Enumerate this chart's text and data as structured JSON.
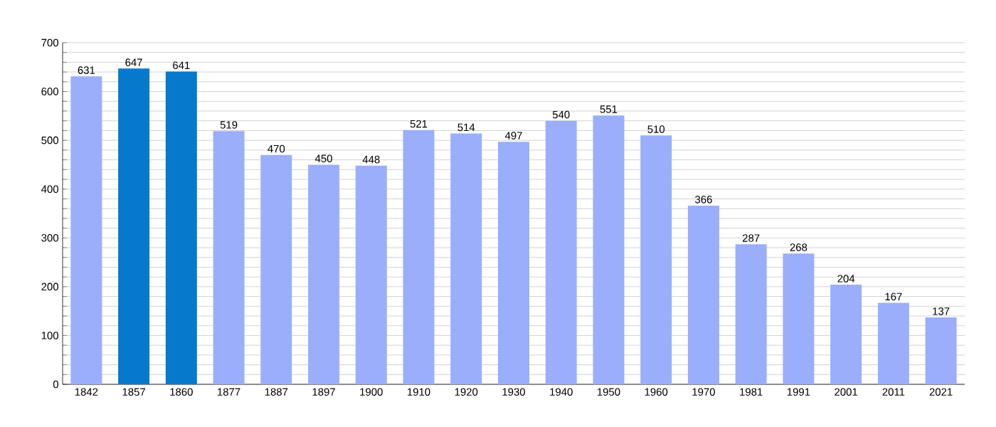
{
  "chart_data": {
    "type": "bar",
    "categories": [
      "1842",
      "1857",
      "1860",
      "1877",
      "1887",
      "1897",
      "1900",
      "1910",
      "1920",
      "1930",
      "1940",
      "1950",
      "1960",
      "1970",
      "1981",
      "1991",
      "2001",
      "2011",
      "2021"
    ],
    "values": [
      631,
      647,
      641,
      519,
      470,
      450,
      448,
      521,
      514,
      497,
      540,
      551,
      510,
      366,
      287,
      268,
      204,
      167,
      137
    ],
    "colors": [
      "#9aaefc",
      "#0779cc",
      "#0779cc",
      "#9aaefc",
      "#9aaefc",
      "#9aaefc",
      "#9aaefc",
      "#9aaefc",
      "#9aaefc",
      "#9aaefc",
      "#9aaefc",
      "#9aaefc",
      "#9aaefc",
      "#9aaefc",
      "#9aaefc",
      "#9aaefc",
      "#9aaefc",
      "#9aaefc",
      "#9aaefc"
    ],
    "ylim": [
      0,
      700
    ],
    "yticks": [
      0,
      {
        "value": 20,
        "label": null
      },
      {
        "value": 40,
        "label": null
      },
      {
        "value": 60,
        "label": null
      },
      {
        "value": 80,
        "label": null
      },
      100,
      {
        "value": 120,
        "label": null
      },
      {
        "value": 140,
        "label": null
      },
      {
        "value": 160,
        "label": null
      },
      {
        "value": 180,
        "label": null
      },
      200,
      {
        "value": 220,
        "label": null
      },
      {
        "value": 240,
        "label": null
      },
      {
        "value": 260,
        "label": null
      },
      {
        "value": 280,
        "label": null
      },
      300,
      {
        "value": 320,
        "label": null
      },
      {
        "value": 340,
        "label": null
      },
      {
        "value": 360,
        "label": null
      },
      {
        "value": 380,
        "label": null
      },
      400,
      {
        "value": 420,
        "label": null
      },
      {
        "value": 440,
        "label": null
      },
      {
        "value": 460,
        "label": null
      },
      {
        "value": 480,
        "label": null
      },
      500,
      {
        "value": 520,
        "label": null
      },
      {
        "value": 540,
        "label": null
      },
      {
        "value": 560,
        "label": null
      },
      {
        "value": 580,
        "label": null
      },
      600,
      {
        "value": 620,
        "label": null
      },
      {
        "value": 640,
        "label": null
      },
      {
        "value": 660,
        "label": null
      },
      {
        "value": 680,
        "label": null
      },
      700
    ],
    "grid": "y",
    "data_labels": true
  }
}
